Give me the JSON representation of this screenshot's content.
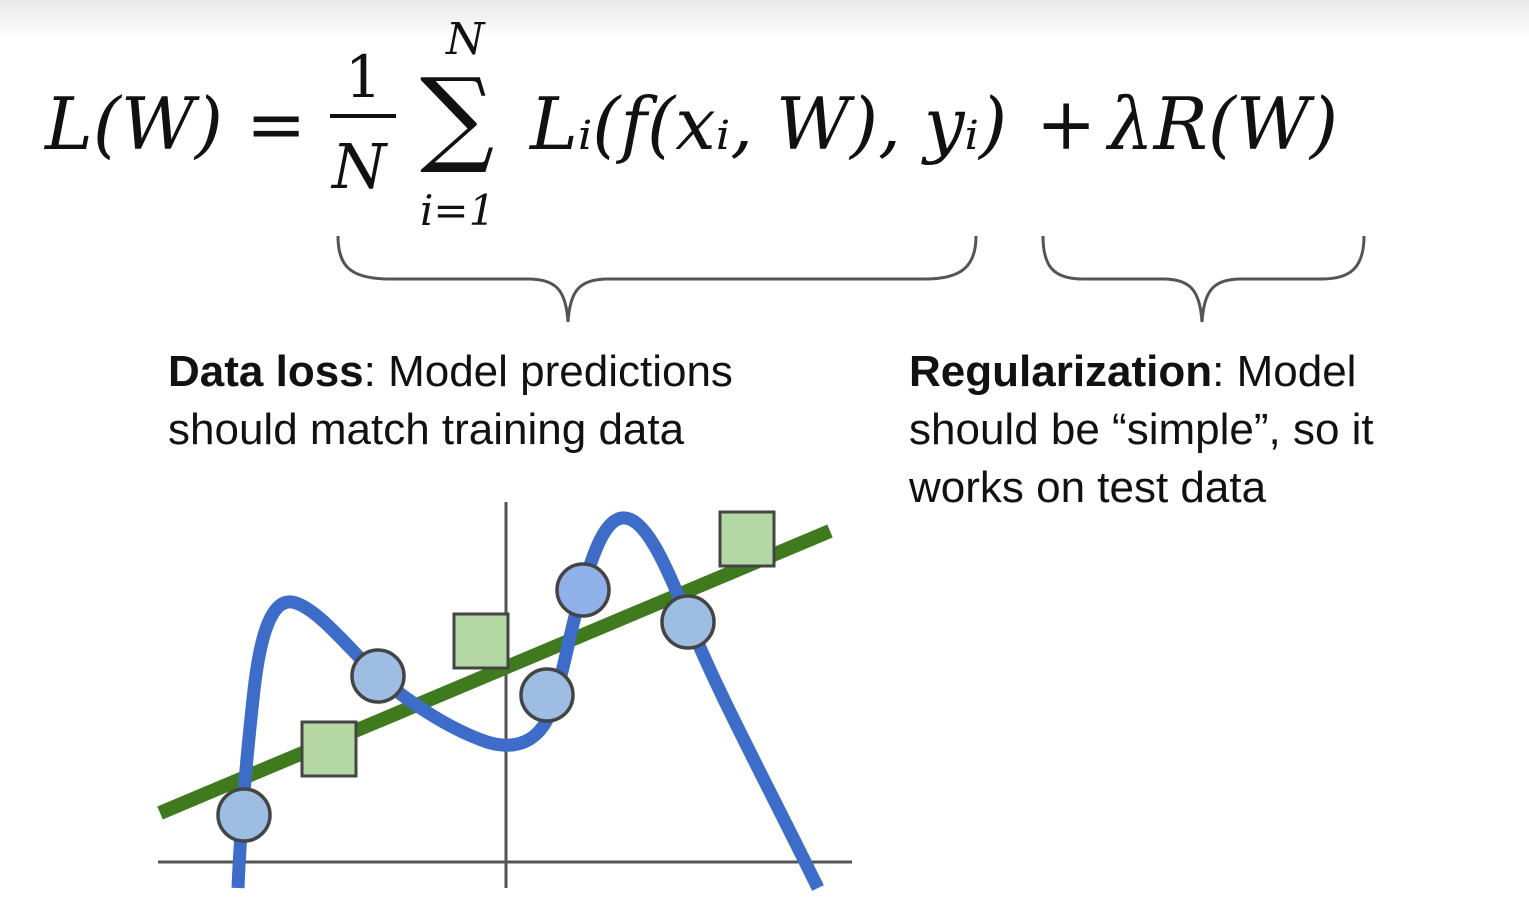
{
  "formula": {
    "lhs": "L(W)",
    "equals": "=",
    "frac_numerator": "1",
    "frac_denominator": "N",
    "sum_symbol": "∑",
    "sum_upper": "N",
    "sum_lower": "i=1",
    "data_term": "Lᵢ(f(xᵢ, W), yᵢ)",
    "plus": "+",
    "reg_term": "λR(W)"
  },
  "data_loss": {
    "title": "Data loss",
    "line1_rest": ": Model predictions",
    "line2": "should match training data"
  },
  "regularization": {
    "title": "Regularization",
    "line1_rest": ": Model",
    "line2": "should be “simple”, so it",
    "line3": "works on test data"
  },
  "colors": {
    "text": "#111111",
    "brace": "#555555",
    "axis": "#555555",
    "curve": "#3d6cc9",
    "line": "#3f7a1f",
    "circle_fill": "#9dbde3",
    "circle_fill_alt": "#8fb0e8",
    "square_fill": "#b4d8a4",
    "marker_stroke": "#444444"
  },
  "icons": {
    "circle_marker": "circle",
    "square_marker": "square"
  }
}
